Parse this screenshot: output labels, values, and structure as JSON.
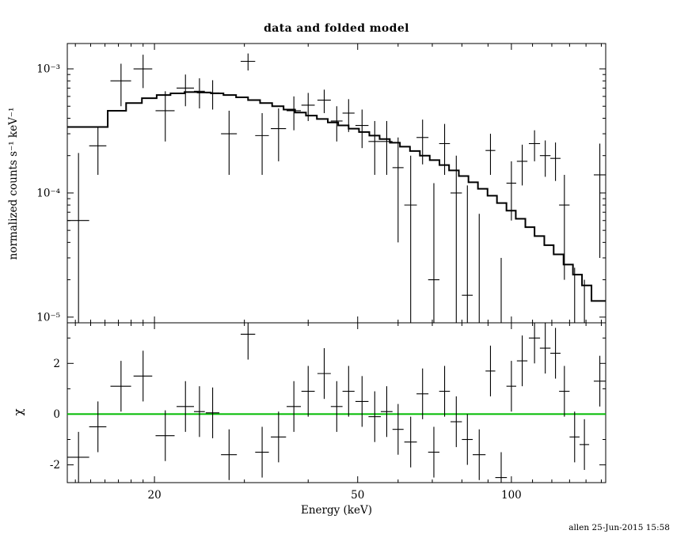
{
  "timestamp": "allen 25-Jun-2015 15:58",
  "colors": {
    "foreground": "#000000",
    "background": "#ffffff",
    "model_line": "#000000",
    "zero_line": "#00bb00"
  },
  "chart_data": {
    "type": "line",
    "title": "data and folded model",
    "xlabel": "Energy (keV)",
    "xscale": "log",
    "xlim": [
      13.5,
      153
    ],
    "x_major_ticks": [
      20,
      50,
      100
    ],
    "x_major_labels": [
      "20",
      "50",
      "100"
    ],
    "x_minor_ticks": [
      14,
      15,
      16,
      17,
      18,
      19,
      30,
      40,
      60,
      70,
      80,
      90,
      110,
      120,
      130,
      140,
      150
    ],
    "legend": "none",
    "grid": false,
    "panels": [
      {
        "name": "spectrum",
        "ylabel": "normalized counts s⁻¹ keV⁻¹",
        "yscale": "log",
        "ylim": [
          9e-06,
          0.0016
        ],
        "y_major_ticks": [
          1e-05,
          0.0001,
          0.001
        ],
        "y_major_labels": [
          "10⁻⁵",
          "10⁻⁴",
          "10⁻³"
        ],
        "model_step": {
          "edges": [
            13.5,
            16.2,
            17.6,
            18.9,
            20.2,
            21.5,
            22.9,
            24.3,
            25.8,
            27.3,
            28.9,
            30.5,
            32.2,
            34.0,
            35.8,
            37.7,
            39.6,
            41.6,
            43.7,
            45.8,
            48.0,
            50.3,
            52.7,
            55.2,
            57.8,
            60.5,
            63.3,
            66.2,
            69.2,
            72.3,
            75.5,
            78.9,
            82.4,
            86.0,
            89.8,
            93.7,
            97.8,
            102.0,
            106.5,
            111.0,
            116.0,
            121.0,
            126.5,
            132.0,
            137.5,
            143.5,
            153.0
          ],
          "values": [
            0.00034,
            0.00046,
            0.00053,
            0.00058,
            0.000615,
            0.000635,
            0.00065,
            0.000645,
            0.000635,
            0.000615,
            0.00059,
            0.00056,
            0.00053,
            0.0005,
            0.00047,
            0.000445,
            0.00042,
            0.000395,
            0.00037,
            0.00035,
            0.00033,
            0.00031,
            0.00029,
            0.000272,
            0.000254,
            0.000236,
            0.000218,
            0.0002,
            0.000184,
            0.000168,
            0.000152,
            0.000137,
            0.000122,
            0.000108,
            9.5e-05,
            8.3e-05,
            7.2e-05,
            6.2e-05,
            5.3e-05,
            4.5e-05,
            3.8e-05,
            3.2e-05,
            2.65e-05,
            2.2e-05,
            1.8e-05,
            1.35e-05
          ]
        },
        "data_points": [
          {
            "e": 14.2,
            "de": 0.7,
            "y": 6e-05,
            "err": 0.00015
          },
          {
            "e": 15.5,
            "de": 0.6,
            "y": 0.00024,
            "err": 0.0001
          },
          {
            "e": 17.2,
            "de": 0.8,
            "y": 0.0008,
            "err": 0.0003
          },
          {
            "e": 19.0,
            "de": 0.8,
            "y": 0.001,
            "err": 0.0003
          },
          {
            "e": 21.0,
            "de": 0.9,
            "y": 0.00046,
            "err": 0.0002
          },
          {
            "e": 23.0,
            "de": 0.9,
            "y": 0.0007,
            "err": 0.0002
          },
          {
            "e": 24.5,
            "de": 0.6,
            "y": 0.00066,
            "err": 0.00018
          },
          {
            "e": 26.0,
            "de": 0.8,
            "y": 0.00064,
            "err": 0.00017
          },
          {
            "e": 28.0,
            "de": 1.0,
            "y": 0.0003,
            "err": 0.00016
          },
          {
            "e": 30.5,
            "de": 1.0,
            "y": 0.00115,
            "err": 0.00018
          },
          {
            "e": 32.5,
            "de": 1.0,
            "y": 0.00029,
            "err": 0.00015
          },
          {
            "e": 35.0,
            "de": 1.2,
            "y": 0.00033,
            "err": 0.00015
          },
          {
            "e": 37.5,
            "de": 1.2,
            "y": 0.00046,
            "err": 0.00014
          },
          {
            "e": 40.0,
            "de": 1.2,
            "y": 0.00051,
            "err": 0.00013
          },
          {
            "e": 43.0,
            "de": 1.3,
            "y": 0.00056,
            "err": 0.00012
          },
          {
            "e": 45.5,
            "de": 1.2,
            "y": 0.00038,
            "err": 0.00012
          },
          {
            "e": 48.0,
            "de": 1.3,
            "y": 0.00044,
            "err": 0.00013
          },
          {
            "e": 51.0,
            "de": 1.5,
            "y": 0.00035,
            "err": 0.00012
          },
          {
            "e": 54.0,
            "de": 1.5,
            "y": 0.00026,
            "err": 0.00012
          },
          {
            "e": 57.0,
            "de": 1.5,
            "y": 0.00026,
            "err": 0.00012
          },
          {
            "e": 60.0,
            "de": 1.5,
            "y": 0.00016,
            "err": 0.00012
          },
          {
            "e": 63.5,
            "de": 1.8,
            "y": 8e-05,
            "err": 0.00012
          },
          {
            "e": 67.0,
            "de": 1.8,
            "y": 0.00028,
            "err": 0.00011
          },
          {
            "e": 70.5,
            "de": 1.8,
            "y": 2e-05,
            "err": 0.0001
          },
          {
            "e": 74.0,
            "de": 1.8,
            "y": 0.00025,
            "err": 0.00011
          },
          {
            "e": 78.0,
            "de": 2.0,
            "y": 0.0001,
            "err": 0.0001
          },
          {
            "e": 82.0,
            "de": 2.0,
            "y": 1.5e-05,
            "err": 0.0001
          },
          {
            "e": 86.5,
            "de": 2.5,
            "y": 8e-06,
            "err": 6e-05
          },
          {
            "e": 91.0,
            "de": 2.0,
            "y": 0.00022,
            "err": 8e-05
          },
          {
            "e": 95.5,
            "de": 2.5,
            "y": 5e-06,
            "err": 2.5e-05
          },
          {
            "e": 100.0,
            "de": 2.2,
            "y": 0.00012,
            "err": 6e-05
          },
          {
            "e": 105.0,
            "de": 2.5,
            "y": 0.00018,
            "err": 6.5e-05
          },
          {
            "e": 111.0,
            "de": 2.8,
            "y": 0.00025,
            "err": 7e-05
          },
          {
            "e": 116.5,
            "de": 2.8,
            "y": 0.0002,
            "err": 6.5e-05
          },
          {
            "e": 122.0,
            "de": 2.8,
            "y": 0.00019,
            "err": 6.5e-05
          },
          {
            "e": 127.0,
            "de": 3.0,
            "y": 8e-05,
            "err": 6e-05
          },
          {
            "e": 133.0,
            "de": 3.0,
            "y": 5e-06,
            "err": 2e-05
          },
          {
            "e": 139.0,
            "de": 3.0,
            "y": 5e-06,
            "err": 1.5e-05
          },
          {
            "e": 149.0,
            "de": 4.0,
            "y": 0.00014,
            "err": 0.00011
          }
        ]
      },
      {
        "name": "residuals",
        "ylabel": "χ",
        "yscale": "linear",
        "ylim": [
          -2.7,
          3.6
        ],
        "y_major_ticks": [
          -2,
          0,
          2
        ],
        "y_major_labels": [
          "-2",
          "0",
          "2"
        ],
        "y_minor_ticks": [
          -1,
          1,
          3
        ],
        "zero_line": 0,
        "data_points": [
          {
            "e": 14.2,
            "de": 0.7,
            "y": -1.7,
            "err": 1.0
          },
          {
            "e": 15.5,
            "de": 0.6,
            "y": -0.5,
            "err": 1.0
          },
          {
            "e": 17.2,
            "de": 0.8,
            "y": 1.1,
            "err": 1.0
          },
          {
            "e": 19.0,
            "de": 0.8,
            "y": 1.5,
            "err": 1.0
          },
          {
            "e": 21.0,
            "de": 0.9,
            "y": -0.85,
            "err": 1.0
          },
          {
            "e": 23.0,
            "de": 0.9,
            "y": 0.3,
            "err": 1.0
          },
          {
            "e": 24.5,
            "de": 0.6,
            "y": 0.1,
            "err": 1.0
          },
          {
            "e": 26.0,
            "de": 0.8,
            "y": 0.05,
            "err": 1.0
          },
          {
            "e": 28.0,
            "de": 1.0,
            "y": -1.6,
            "err": 1.0
          },
          {
            "e": 30.5,
            "de": 1.0,
            "y": 3.15,
            "err": 1.0
          },
          {
            "e": 32.5,
            "de": 1.0,
            "y": -1.5,
            "err": 1.0
          },
          {
            "e": 35.0,
            "de": 1.2,
            "y": -0.9,
            "err": 1.0
          },
          {
            "e": 37.5,
            "de": 1.2,
            "y": 0.3,
            "err": 1.0
          },
          {
            "e": 40.0,
            "de": 1.2,
            "y": 0.9,
            "err": 1.0
          },
          {
            "e": 43.0,
            "de": 1.3,
            "y": 1.6,
            "err": 1.0
          },
          {
            "e": 45.5,
            "de": 1.2,
            "y": 0.3,
            "err": 1.0
          },
          {
            "e": 48.0,
            "de": 1.3,
            "y": 0.9,
            "err": 1.0
          },
          {
            "e": 51.0,
            "de": 1.5,
            "y": 0.5,
            "err": 1.0
          },
          {
            "e": 54.0,
            "de": 1.5,
            "y": -0.1,
            "err": 1.0
          },
          {
            "e": 57.0,
            "de": 1.5,
            "y": 0.1,
            "err": 1.0
          },
          {
            "e": 60.0,
            "de": 1.5,
            "y": -0.6,
            "err": 1.0
          },
          {
            "e": 63.5,
            "de": 1.8,
            "y": -1.1,
            "err": 1.0
          },
          {
            "e": 67.0,
            "de": 1.8,
            "y": 0.8,
            "err": 1.0
          },
          {
            "e": 70.5,
            "de": 1.8,
            "y": -1.5,
            "err": 1.0
          },
          {
            "e": 74.0,
            "de": 1.8,
            "y": 0.9,
            "err": 1.0
          },
          {
            "e": 78.0,
            "de": 2.0,
            "y": -0.3,
            "err": 1.0
          },
          {
            "e": 82.0,
            "de": 2.0,
            "y": -1.0,
            "err": 1.0
          },
          {
            "e": 86.5,
            "de": 2.5,
            "y": -1.6,
            "err": 1.0
          },
          {
            "e": 91.0,
            "de": 2.0,
            "y": 1.7,
            "err": 1.0
          },
          {
            "e": 95.5,
            "de": 2.5,
            "y": -2.5,
            "err": 1.0
          },
          {
            "e": 100.0,
            "de": 2.2,
            "y": 1.1,
            "err": 1.0
          },
          {
            "e": 105.0,
            "de": 2.5,
            "y": 2.1,
            "err": 1.0
          },
          {
            "e": 111.0,
            "de": 2.8,
            "y": 3.0,
            "err": 1.0
          },
          {
            "e": 116.5,
            "de": 2.8,
            "y": 2.6,
            "err": 1.0
          },
          {
            "e": 122.0,
            "de": 2.8,
            "y": 2.4,
            "err": 1.0
          },
          {
            "e": 127.0,
            "de": 3.0,
            "y": 0.9,
            "err": 1.0
          },
          {
            "e": 133.0,
            "de": 3.0,
            "y": -0.9,
            "err": 1.0
          },
          {
            "e": 139.0,
            "de": 3.0,
            "y": -1.2,
            "err": 1.0
          },
          {
            "e": 149.0,
            "de": 4.0,
            "y": 1.3,
            "err": 1.0
          }
        ]
      }
    ]
  }
}
